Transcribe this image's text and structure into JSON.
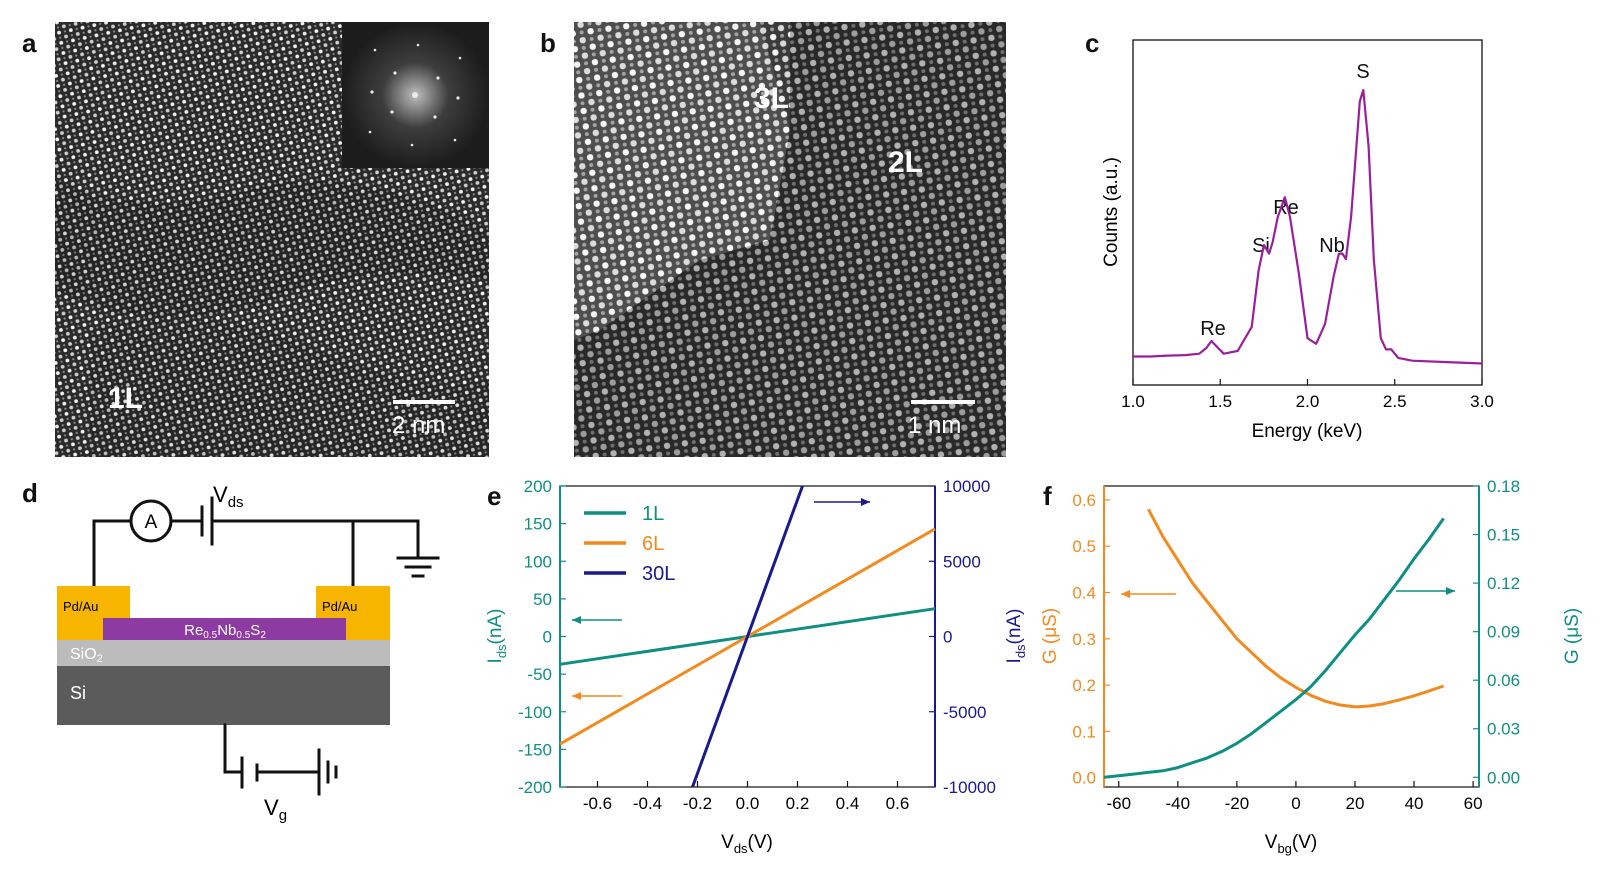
{
  "panels": {
    "a": {
      "label": "a",
      "layer": "1L",
      "scale": "2 nm"
    },
    "b": {
      "label": "b",
      "layer_top": "3L",
      "layer_right": "2L",
      "scale": "1 nm"
    },
    "c": {
      "label": "c",
      "peaks": [
        "Re",
        "Si",
        "Re",
        "Nb",
        "S"
      ],
      "chart_data": {
        "type": "line",
        "xlabel": "Energy (keV)",
        "ylabel": "Counts (a.u.)",
        "xlim": [
          1.0,
          3.0
        ],
        "xticks": [
          "1.0",
          "1.5",
          "2.0",
          "2.5",
          "3.0"
        ],
        "color": "#9b1f9b",
        "series": [
          {
            "x": [
              1.0,
              1.1,
              1.2,
              1.3,
              1.38,
              1.42,
              1.45,
              1.48,
              1.52,
              1.6,
              1.68,
              1.72,
              1.75,
              1.78,
              1.8,
              1.83,
              1.87,
              1.9,
              1.95,
              2.0,
              2.05,
              2.1,
              2.15,
              2.18,
              2.2,
              2.22,
              2.25,
              2.28,
              2.3,
              2.32,
              2.35,
              2.38,
              2.42,
              2.45,
              2.48,
              2.52,
              2.6,
              2.8,
              3.0
            ],
            "y": [
              0.055,
              0.055,
              0.058,
              0.06,
              0.065,
              0.085,
              0.11,
              0.09,
              0.065,
              0.075,
              0.16,
              0.36,
              0.45,
              0.42,
              0.46,
              0.55,
              0.62,
              0.55,
              0.35,
              0.12,
              0.1,
              0.17,
              0.34,
              0.42,
              0.42,
              0.4,
              0.55,
              0.8,
              0.96,
              1.0,
              0.8,
              0.4,
              0.12,
              0.08,
              0.08,
              0.05,
              0.04,
              0.035,
              0.03
            ]
          }
        ]
      }
    },
    "d": {
      "label": "d",
      "ammeter": "A",
      "vds": {
        "main": "V",
        "sub": "ds"
      },
      "vg": {
        "main": "V",
        "sub": "g"
      },
      "contact_left": "Pd/Au",
      "contact_right": "Pd/Au",
      "channel": {
        "p1": "Re",
        "s1": "0.5",
        "p2": "Nb",
        "s2": "0.5",
        "p3": "S",
        "s3": "2"
      },
      "oxide": {
        "main": "SiO",
        "sub": "2"
      },
      "substrate": "Si"
    },
    "e": {
      "label": "e",
      "chart_data": {
        "type": "line",
        "xlabel": {
          "main": "V",
          "sub": "ds",
          "tail": "(V)"
        },
        "ylabel_left": {
          "main": "I",
          "sub": "ds",
          "tail": "(nA)"
        },
        "ylabel_right": {
          "main": "I",
          "sub": "ds",
          "tail": "(nA)"
        },
        "xlim": [
          -0.75,
          0.75
        ],
        "ylim_left": [
          -200,
          200
        ],
        "ylim_right": [
          -10000,
          10000
        ],
        "xticks": [
          "-0.6",
          "-0.4",
          "-0.2",
          "0.0",
          "0.2",
          "0.4",
          "0.6"
        ],
        "yticks_left": [
          "-200",
          "-150",
          "-100",
          "-50",
          "0",
          "50",
          "100",
          "150",
          "200"
        ],
        "yticks_right": [
          "-10000",
          "-5000",
          "0",
          "5000",
          "10000"
        ],
        "left_color": "#0f8f84",
        "right_color": "#1a1a8c",
        "series": [
          {
            "name": "1L",
            "axis": "left",
            "color": "#0f8f84",
            "x": [
              -0.75,
              0.75
            ],
            "y": [
              -37,
              37
            ]
          },
          {
            "name": "6L",
            "axis": "left",
            "color": "#f28a1e",
            "x": [
              -0.75,
              0.75
            ],
            "y": [
              -143,
              143
            ]
          },
          {
            "name": "30L",
            "axis": "right",
            "color": "#1a1a8c",
            "x": [
              -0.22,
              0.22
            ],
            "y": [
              -10000,
              10000
            ]
          }
        ]
      }
    },
    "f": {
      "label": "f",
      "chart_data": {
        "type": "line",
        "xlabel": {
          "main": "V",
          "sub": "bg",
          "tail": "(V)"
        },
        "ylabel_left": "G (μS)",
        "ylabel_right": "G (μS)",
        "xlim": [
          -65,
          62
        ],
        "ylim_left": [
          -0.02,
          0.63
        ],
        "ylim_right": [
          -0.006,
          0.18
        ],
        "xticks": [
          "-60",
          "-40",
          "-20",
          "0",
          "20",
          "40",
          "60"
        ],
        "yticks_left": [
          "0.0",
          "0.1",
          "0.2",
          "0.3",
          "0.4",
          "0.5",
          "0.6"
        ],
        "yticks_right": [
          "0.00",
          "0.03",
          "0.06",
          "0.09",
          "0.12",
          "0.15",
          "0.18"
        ],
        "left_color": "#f28a1e",
        "right_color": "#0f8f84",
        "series": [
          {
            "axis": "left",
            "color": "#f28a1e",
            "x": [
              -50,
              -45,
              -40,
              -35,
              -30,
              -25,
              -20,
              -15,
              -10,
              -5,
              0,
              5,
              10,
              15,
              20,
              25,
              30,
              35,
              40,
              45,
              50
            ],
            "y": [
              0.58,
              0.52,
              0.47,
              0.42,
              0.38,
              0.34,
              0.3,
              0.27,
              0.24,
              0.215,
              0.195,
              0.178,
              0.165,
              0.157,
              0.153,
              0.155,
              0.16,
              0.168,
              0.177,
              0.187,
              0.198
            ]
          },
          {
            "axis": "right",
            "color": "#0f8f84",
            "x": [
              -65,
              -60,
              -55,
              -50,
              -45,
              -40,
              -35,
              -30,
              -25,
              -20,
              -15,
              -10,
              -5,
              0,
              5,
              10,
              15,
              20,
              25,
              30,
              35,
              40,
              45,
              50
            ],
            "y": [
              0.0,
              0.001,
              0.002,
              0.003,
              0.004,
              0.006,
              0.009,
              0.012,
              0.016,
              0.021,
              0.027,
              0.034,
              0.041,
              0.048,
              0.056,
              0.066,
              0.077,
              0.088,
              0.098,
              0.11,
              0.122,
              0.135,
              0.147,
              0.16
            ]
          }
        ]
      }
    }
  }
}
